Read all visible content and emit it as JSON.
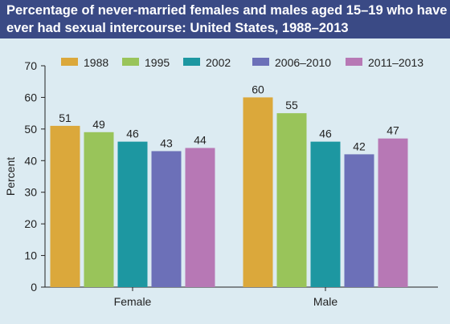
{
  "header": {
    "title_line1": "Percentage of never-married females and males aged 15–19 who have",
    "title_line2": "ever had sexual intercourse: United States, 1988–2013"
  },
  "colors": {
    "title_background": "#3a4a85",
    "panel_background": "#dcebf2"
  },
  "chart_data": {
    "type": "bar",
    "title": "Percentage of never-married females and males aged 15–19 who have ever had sexual intercourse: United States, 1988–2013",
    "xlabel": "",
    "ylabel": "Percent",
    "categories": [
      "Female",
      "Male"
    ],
    "series": [
      {
        "name": "1988",
        "color": "#dba83b",
        "values": [
          51,
          60
        ]
      },
      {
        "name": "1995",
        "color": "#99c45a",
        "values": [
          49,
          55
        ]
      },
      {
        "name": "2002",
        "color": "#1d97a1",
        "values": [
          46,
          46
        ]
      },
      {
        "name": "2006–2010",
        "color": "#6c70b8",
        "values": [
          43,
          42
        ]
      },
      {
        "name": "2011–2013",
        "color": "#b778b5",
        "values": [
          44,
          47
        ]
      }
    ],
    "ylim": [
      0,
      70
    ],
    "yticks": [
      0,
      10,
      20,
      30,
      40,
      50,
      60,
      70
    ],
    "grid": false,
    "legend_position": "top"
  }
}
